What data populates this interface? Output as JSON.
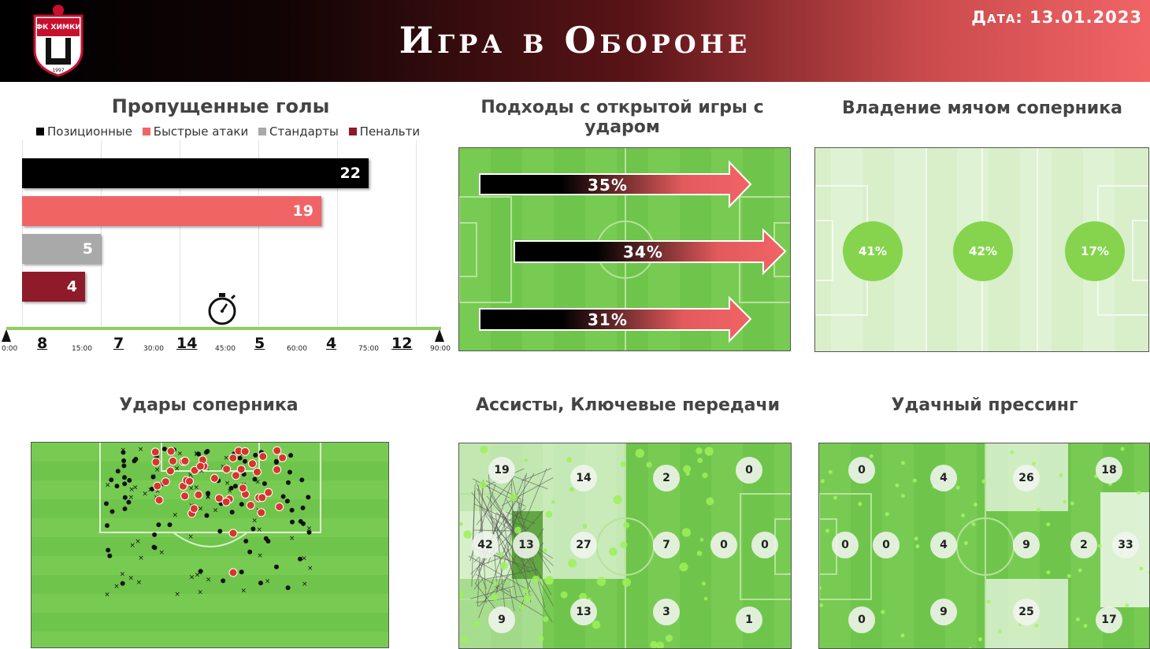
{
  "header": {
    "title": "Игра в Обороне",
    "date": "Дата: 13.01.2023",
    "logo_text": "ФК ХИМКИ",
    "logo_year": "1997"
  },
  "goals_conceded": {
    "title": "Пропущенные голы",
    "legend": [
      "Позиционные",
      "Быстрые атаки",
      "Стандарты",
      "Пенальти"
    ],
    "timeline_ticks": [
      "0:00",
      "15:00",
      "30:00",
      "45:00",
      "60:00",
      "75:00",
      "90:00"
    ],
    "period_goals": [
      "8",
      "7",
      "14",
      "5",
      "4",
      "12"
    ]
  },
  "open_play_entries": {
    "title": "Подходы с открытой игры с ударом",
    "lanes": [
      "35%",
      "34%",
      "31%"
    ]
  },
  "opponent_possession": {
    "title": "Владение мячом соперника",
    "thirds": [
      "41%",
      "42%",
      "17%"
    ]
  },
  "opponent_shots": {
    "title": "Удары соперника"
  },
  "assists_key_passes": {
    "title": "Ассисты, Ключевые передачи",
    "zones": [
      "19",
      "14",
      "2",
      "0",
      "42",
      "13",
      "27",
      "7",
      "0",
      "0",
      "9",
      "13",
      "3",
      "1"
    ]
  },
  "successful_pressing": {
    "title": "Удачный прессинг",
    "zones": [
      "0",
      "4",
      "26",
      "18",
      "0",
      "0",
      "4",
      "9",
      "2",
      "33",
      "0",
      "9",
      "25",
      "17"
    ]
  },
  "chart_data": {
    "type": "bar",
    "categories": [
      "Позиционные",
      "Быстрые атаки",
      "Стандарты",
      "Пенальти"
    ],
    "values": [
      22,
      19,
      5,
      4
    ],
    "colors": [
      "#000000",
      "#f16466",
      "#a9a9a9",
      "#8e1a2a"
    ],
    "title": "Пропущенные голы",
    "xlim": [
      0,
      25
    ]
  }
}
